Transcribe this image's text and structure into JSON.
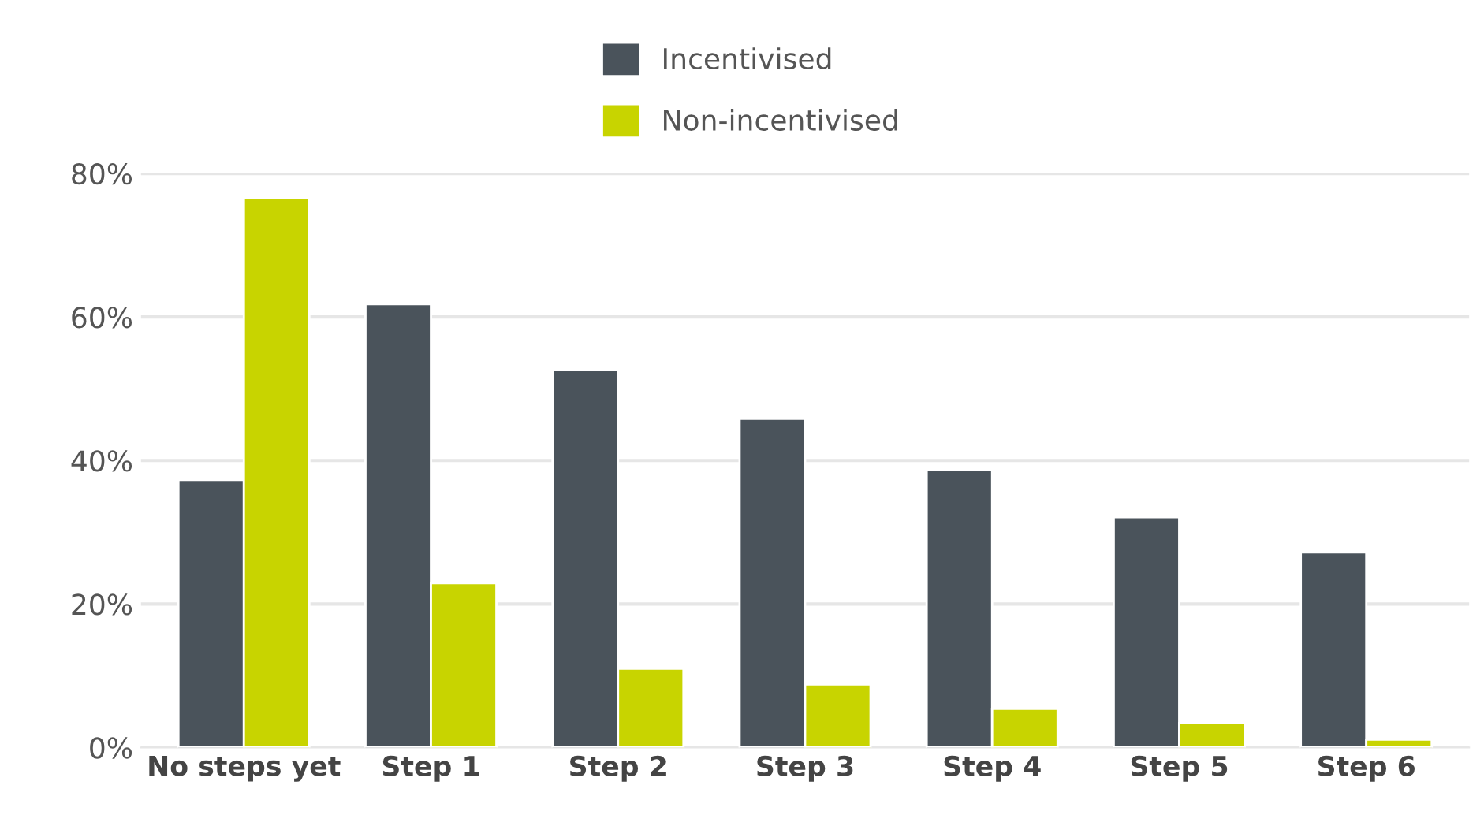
{
  "chart_data": {
    "type": "bar",
    "categories": [
      "No steps yet",
      "Step 1",
      "Step 2",
      "Step 3",
      "Step 4",
      "Step 5",
      "Step 6"
    ],
    "series": [
      {
        "name": "Incentivised",
        "color": "#4a535b",
        "values": [
          37.3,
          61.8,
          52.6,
          45.8,
          38.7,
          32.1,
          27.2
        ]
      },
      {
        "name": "Non-incentivised",
        "color": "#c8d400",
        "values": [
          76.6,
          22.9,
          11.0,
          8.8,
          5.4,
          3.4,
          1.1
        ]
      }
    ],
    "ylim": [
      0,
      80
    ],
    "yticks": [
      {
        "value": 0,
        "label": "0%"
      },
      {
        "value": 20,
        "label": "20%"
      },
      {
        "value": 40,
        "label": "40%"
      },
      {
        "value": 60,
        "label": "60%"
      },
      {
        "value": 80,
        "label": "80%"
      }
    ],
    "grid": "y",
    "legend": "top"
  }
}
